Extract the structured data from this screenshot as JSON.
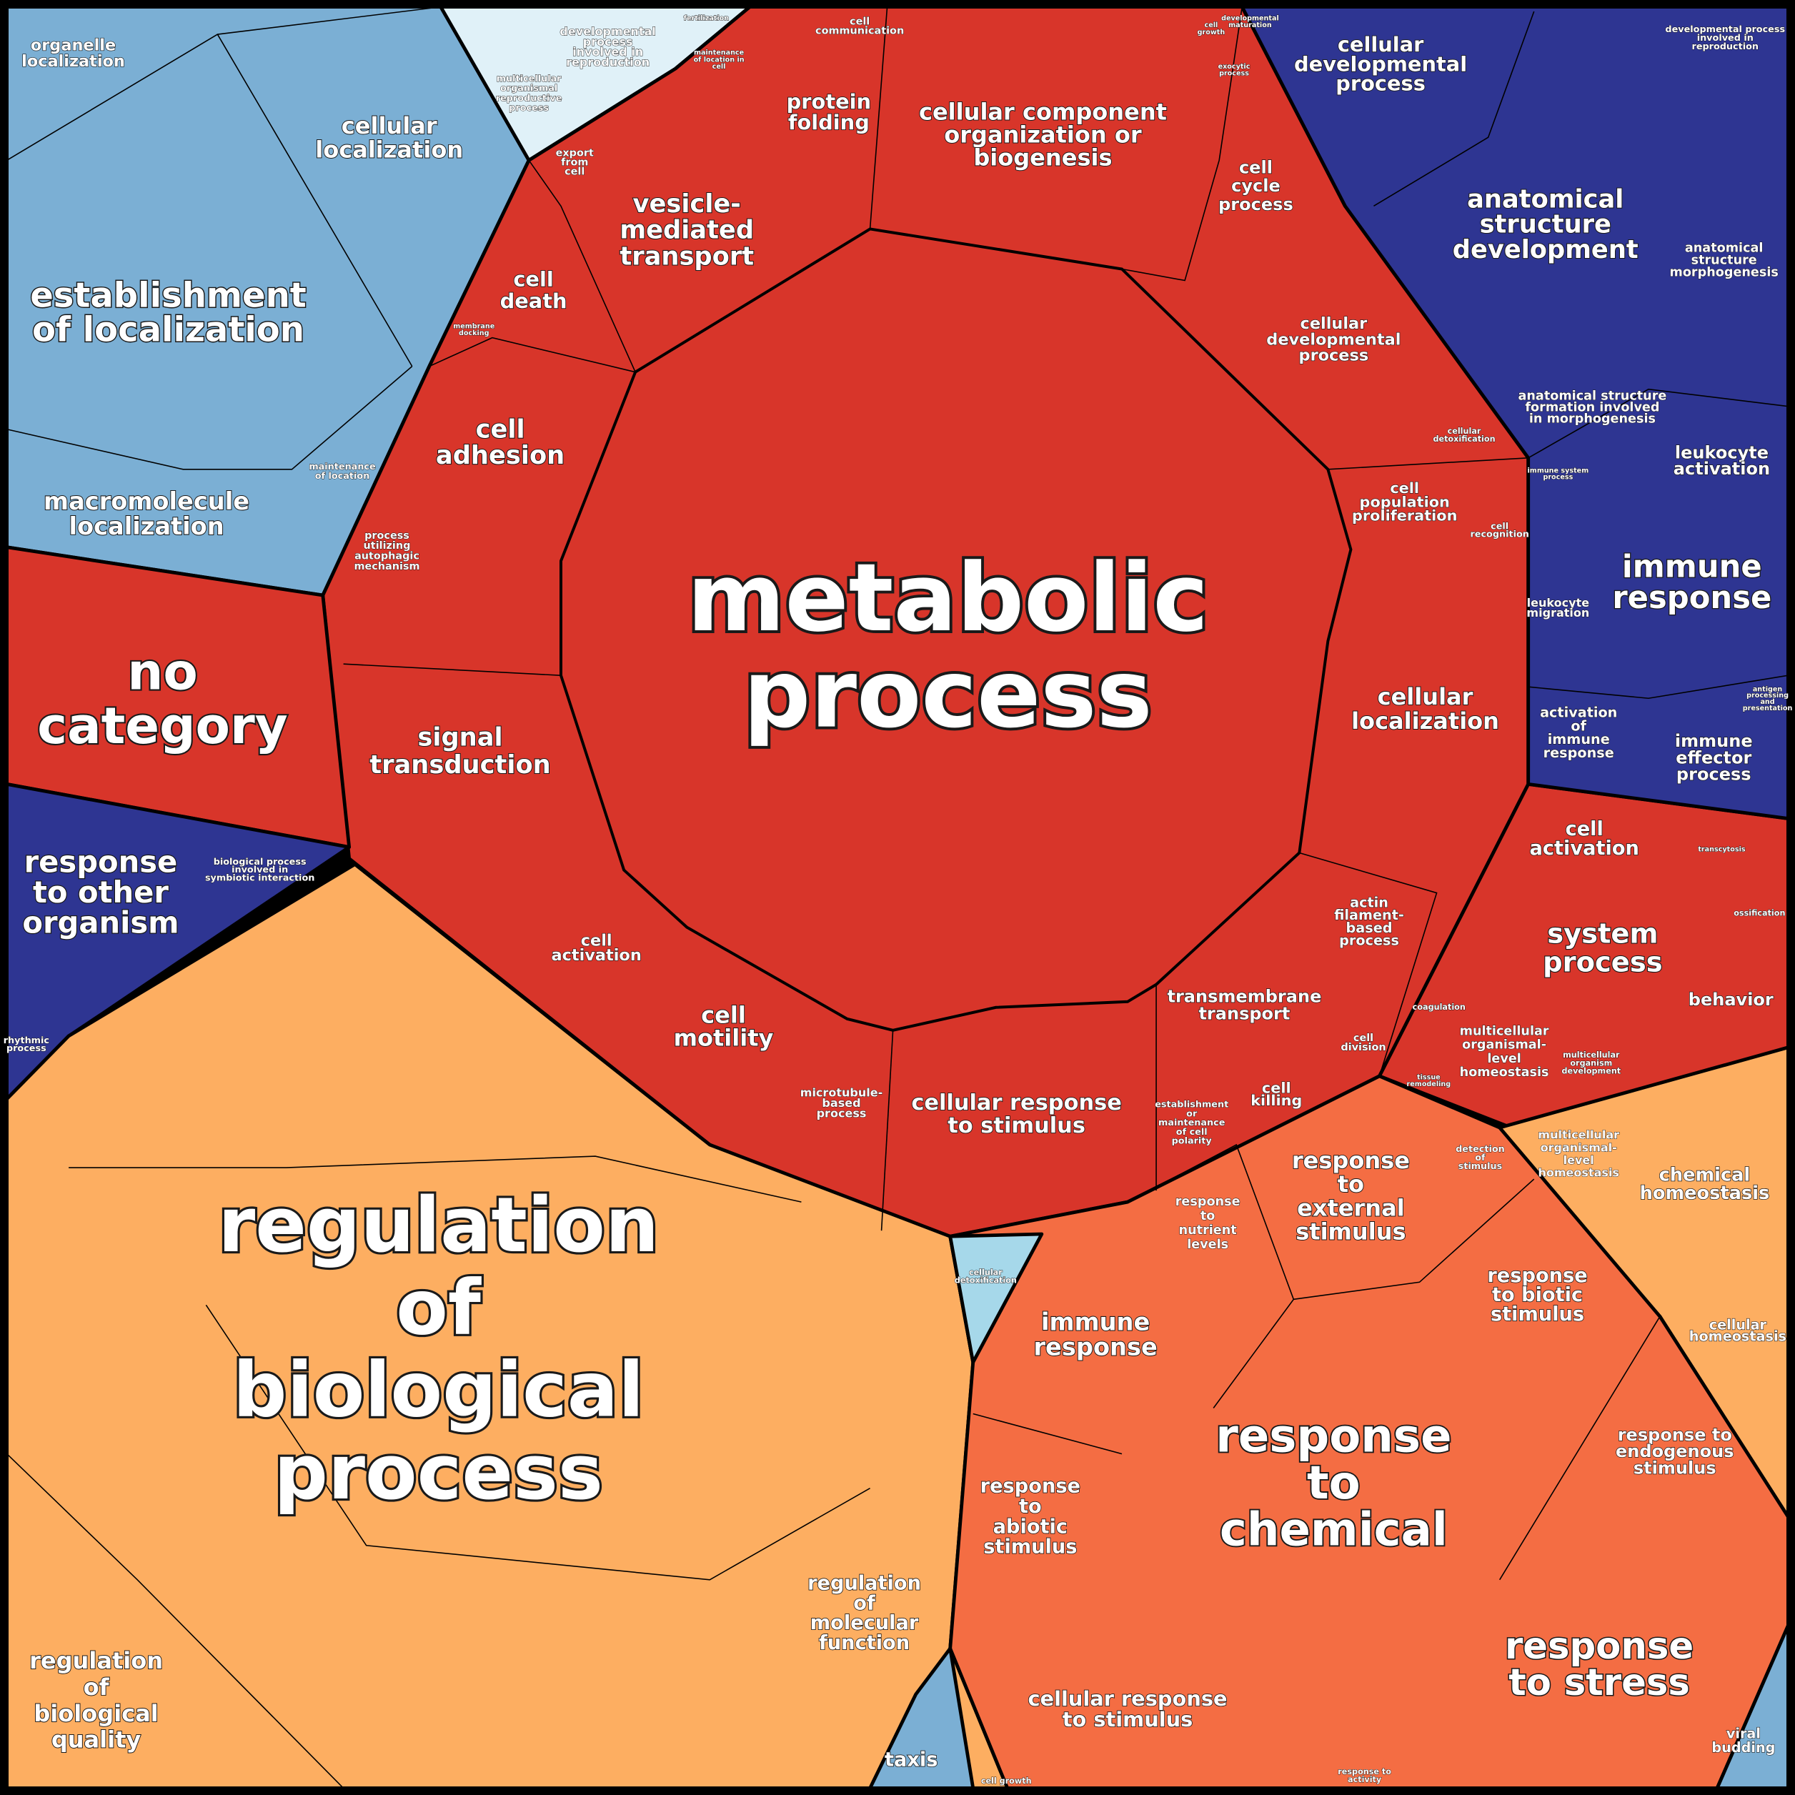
{
  "cells": [
    [
      "metabolic",
      "process"
    ],
    [
      "regulation",
      "of",
      "biological",
      "process"
    ],
    [
      "no",
      "category"
    ],
    [
      "establishment",
      "of localization"
    ],
    [
      "response",
      "to",
      "chemical"
    ],
    [
      "response",
      "to stress"
    ],
    [
      "response",
      "to other",
      "organism"
    ],
    [
      "immune",
      "response"
    ],
    [
      "anatomical",
      "structure",
      "development"
    ],
    [
      "system",
      "process"
    ],
    [
      "signal",
      "transduction"
    ],
    [
      "cell",
      "adhesion"
    ],
    [
      "vesicle-",
      "mediated",
      "transport"
    ],
    [
      "cellular component",
      "organization or",
      "biogenesis"
    ],
    [
      "cellular",
      "localization"
    ],
    [
      "macromolecule",
      "localization"
    ],
    [
      "organelle",
      "localization"
    ],
    [
      "cellular",
      "developmental",
      "process"
    ],
    [
      "cellular",
      "localization"
    ],
    [
      "cellular response",
      "to stimulus"
    ],
    [
      "cell",
      "motility"
    ],
    [
      "cell",
      "death"
    ],
    [
      "protein",
      "folding"
    ],
    [
      "cell",
      "cycle",
      "process"
    ],
    [
      "cellular",
      "developmental",
      "process"
    ],
    [
      "cell",
      "population",
      "proliferation"
    ],
    [
      "transmembrane",
      "transport"
    ],
    [
      "cell",
      "activation"
    ],
    [
      "cell",
      "activation"
    ],
    [
      "leukocyte",
      "activation"
    ],
    [
      "behavior"
    ],
    [
      "immune",
      "effector",
      "process"
    ],
    [
      "activation",
      "of",
      "immune",
      "response"
    ],
    [
      "leukocyte",
      "migration"
    ],
    [
      "actin",
      "filament-",
      "based",
      "process"
    ],
    [
      "cell",
      "killing"
    ],
    [
      "cell",
      "division"
    ],
    [
      "multicellular",
      "organismal-",
      "level",
      "homeostasis"
    ],
    [
      "response",
      "to",
      "external",
      "stimulus"
    ],
    [
      "immune",
      "response"
    ],
    [
      "response",
      "to biotic",
      "stimulus"
    ],
    [
      "response",
      "to",
      "abiotic",
      "stimulus"
    ],
    [
      "response to",
      "endogenous",
      "stimulus"
    ],
    [
      "cellular response",
      "to stimulus"
    ],
    [
      "response",
      "to",
      "nutrient",
      "levels"
    ],
    [
      "chemical",
      "homeostasis"
    ],
    [
      "cellular",
      "homeostasis"
    ],
    [
      "regulation",
      "of",
      "molecular",
      "function"
    ],
    [
      "regulation",
      "of",
      "biological",
      "quality"
    ],
    [
      "taxis"
    ],
    [
      "viral",
      "budding"
    ],
    [
      "anatomical",
      "structure",
      "morphogenesis"
    ],
    [
      "anatomical structure",
      "formation involved",
      "in morphogenesis"
    ],
    [
      "microtubule-",
      "based",
      "process"
    ],
    [
      "establishment",
      "or",
      "maintenance",
      "of cell",
      "polarity"
    ],
    [
      "developmental",
      "process",
      "involved in",
      "reproduction"
    ],
    [
      "multicellular",
      "organismal",
      "reproductive",
      "process"
    ],
    [
      "export",
      "from",
      "cell"
    ],
    [
      "process",
      "utilizing",
      "autophagic",
      "mechanism"
    ],
    [
      "cell",
      "communication"
    ],
    [
      "biological process",
      "involved in",
      "symbiotic interaction"
    ],
    [
      "detection",
      "of",
      "stimulus"
    ],
    [
      "coagulation"
    ],
    [
      "cell",
      "recognition"
    ],
    [
      "cellular",
      "detoxification"
    ],
    [
      "developmental process",
      "involved in",
      "reproduction"
    ],
    [
      "maintenance",
      "of location"
    ],
    [
      "rhythmic",
      "process"
    ],
    [
      "immune system",
      "process"
    ],
    [
      "multicellular",
      "organism",
      "development"
    ],
    [
      "ossification"
    ],
    [
      "response to",
      "activity"
    ],
    [
      "cell growth"
    ],
    [
      "cellular",
      "detoxification"
    ],
    [
      "membrane",
      "docking"
    ],
    [
      "fertilization"
    ],
    [
      "exocytic",
      "process"
    ],
    [
      "cell",
      "growth"
    ],
    [
      "developmental",
      "maturation"
    ],
    [
      "transcytosis"
    ],
    [
      "antigen",
      "processing",
      "and",
      "presentation"
    ],
    [
      "multicellular",
      "organismal-",
      "level",
      "homeostasis"
    ],
    [
      "tissue",
      "remodeling"
    ],
    [
      "maintenance",
      "of location in",
      "cell"
    ]
  ]
}
